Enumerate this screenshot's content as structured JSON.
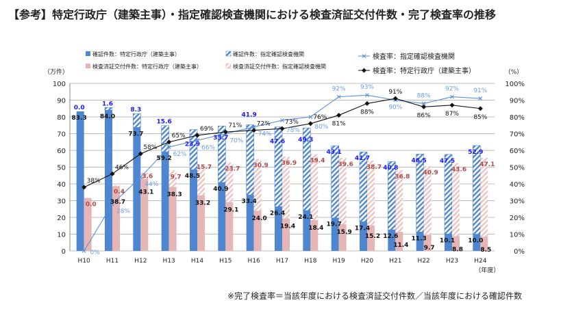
{
  "title": "【参考】特定行政庁（建築主事）・指定確認検査機関における検査済証交付件数・完了検査率の推移",
  "footnote": "※完了検査率＝当該年度における検査済証交付件数／当該年度における確認件数",
  "chart_data": {
    "type": "bar",
    "title": "【参考】特定行政庁（建築主事）・指定確認検査機関における検査済証交付件数・完了検査率の推移",
    "categories": [
      "H10",
      "H11",
      "H12",
      "H13",
      "H14",
      "H15",
      "H16",
      "H17",
      "H18",
      "H19",
      "H20",
      "H21",
      "H22",
      "H23",
      "H24"
    ],
    "xlabel": "（年度）",
    "ylabel": "（万件）",
    "y2label": "（%）",
    "ylim": [
      0,
      100
    ],
    "y2lim": [
      0,
      100
    ],
    "yticks": [
      "0",
      "10",
      "20",
      "30",
      "40",
      "50",
      "60",
      "70",
      "80",
      "90",
      "100"
    ],
    "y2ticks": [
      "0%",
      "10%",
      "20%",
      "30%",
      "40%",
      "50%",
      "60%",
      "70%",
      "80%",
      "90%",
      "100%"
    ],
    "grid": true,
    "legend_position": "top",
    "series": [
      {
        "name": "確認件数：特定行政庁（建築主事）",
        "type": "stacked-bar",
        "stack": "confirm",
        "color": "#4f86d0",
        "hatched": false,
        "values": [
          83.3,
          84.0,
          73.7,
          59.2,
          48.5,
          40.9,
          33.4,
          26.4,
          24.1,
          19.7,
          17.4,
          12.6,
          11.3,
          10.1,
          10.0
        ]
      },
      {
        "name": "確認件数：指定確認検査機関",
        "type": "stacked-bar",
        "stack": "confirm",
        "color": "#4f86d0",
        "hatched": true,
        "values": [
          0.0,
          1.6,
          8.3,
          15.6,
          23.9,
          33.7,
          41.9,
          47.6,
          49.3,
          43.1,
          41.7,
          40.8,
          46.5,
          47.5,
          52.9
        ]
      },
      {
        "name": "検査済証交付件数：特定行政庁（建築主事）",
        "type": "stacked-bar",
        "stack": "inspect",
        "color": "#e6b5b5",
        "hatched": false,
        "values": [
          31.6,
          38.7,
          43.1,
          38.3,
          33.2,
          29.1,
          24.0,
          19.4,
          18.4,
          15.9,
          15.2,
          11.4,
          9.7,
          8.8,
          8.5
        ],
        "labels": [
          null,
          "38.7",
          "43.1",
          "38.3",
          "33.2",
          "29.1",
          "24.0",
          "19.4",
          "18.4",
          "15.9",
          "15.2",
          "11.4",
          "9.7",
          "8.8",
          "8.5"
        ]
      },
      {
        "name": "検査済証交付件数：指定確認検査機関",
        "type": "stacked-bar",
        "stack": "inspect",
        "color": "#e6b5b5",
        "hatched": true,
        "values": [
          0.0,
          0.4,
          3.6,
          9.7,
          15.7,
          23.7,
          30.9,
          36.9,
          39.4,
          39.6,
          38.7,
          36.8,
          40.9,
          43.6,
          47.1
        ]
      },
      {
        "name": "検査率：指定確認検査機関",
        "type": "line",
        "axis": "right",
        "color": "#5b8fd6",
        "marker": "x",
        "values": [
          0,
          28,
          44,
          62,
          66,
          70,
          74,
          78,
          80,
          92,
          93,
          90,
          88,
          92,
          91
        ]
      },
      {
        "name": "検査率：特定行政庁（建築主事）",
        "type": "line",
        "axis": "right",
        "color": "#111111",
        "marker": "diamond",
        "values": [
          38,
          46,
          58,
          65,
          69,
          71,
          72,
          73,
          76,
          81,
          88,
          91,
          86,
          87,
          85
        ]
      }
    ]
  }
}
